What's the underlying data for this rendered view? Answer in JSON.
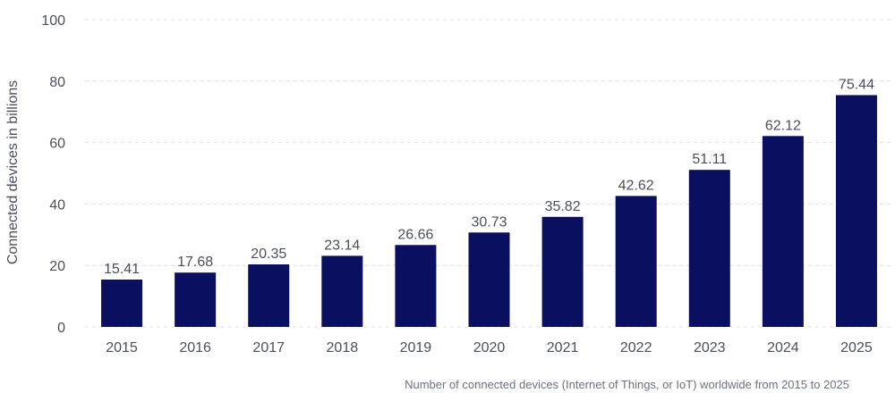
{
  "chart_data": {
    "type": "bar",
    "categories": [
      "2015",
      "2016",
      "2017",
      "2018",
      "2019",
      "2020",
      "2021",
      "2022",
      "2023",
      "2024",
      "2025"
    ],
    "values": [
      15.41,
      17.68,
      20.35,
      23.14,
      26.66,
      30.73,
      35.82,
      42.62,
      51.11,
      62.12,
      75.44
    ],
    "value_labels": [
      "15.41",
      "17.68",
      "20.35",
      "23.14",
      "26.66",
      "30.73",
      "35.82",
      "42.62",
      "51.11",
      "62.12",
      "75.44"
    ],
    "title": "",
    "xlabel": "",
    "ylabel": "Connected devices in billions",
    "ylim": [
      0,
      100
    ],
    "yticks": [
      0,
      20,
      40,
      60,
      80,
      100
    ],
    "ytick_labels": [
      "0",
      "20",
      "40",
      "60",
      "80",
      "100"
    ],
    "grid": true,
    "bar_color": "#0b0f60",
    "caption": "Number of connected devices (Internet of Things, or IoT) worldwide from 2015 to 2025"
  }
}
